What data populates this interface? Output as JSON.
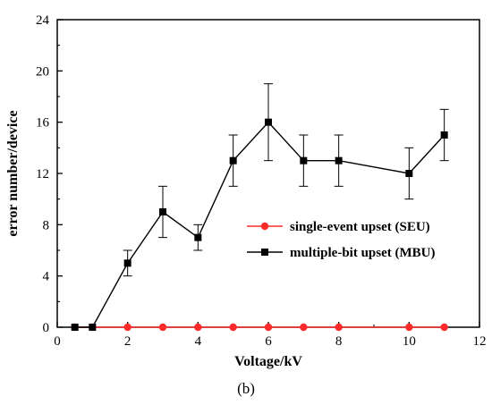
{
  "chart_data": {
    "type": "line",
    "xlabel": "Voltage/kV",
    "ylabel": "error number/device",
    "panel_label": "(b)",
    "xlim": [
      0,
      12
    ],
    "ylim": [
      0,
      24
    ],
    "xticks": [
      "0",
      "2",
      "4",
      "6",
      "8",
      "10",
      "12"
    ],
    "yticks": [
      "0",
      "4",
      "8",
      "12",
      "16",
      "20",
      "24"
    ],
    "legend_position": "center-right",
    "grid": false,
    "series": [
      {
        "name": "single-event upset (SEU)",
        "color": "#ff2a2a",
        "marker": "circle",
        "x": [
          0.5,
          1,
          2,
          3,
          4,
          5,
          6,
          7,
          8,
          10,
          11
        ],
        "y": [
          0,
          0,
          0,
          0,
          0,
          0,
          0,
          0,
          0,
          0,
          0
        ]
      },
      {
        "name": "multiple-bit upset (MBU)",
        "color": "#000000",
        "marker": "square",
        "x": [
          0.5,
          1,
          2,
          3,
          4,
          5,
          6,
          7,
          8,
          10,
          11
        ],
        "y": [
          0,
          0,
          5,
          9,
          7,
          13,
          16,
          13,
          13,
          12,
          15
        ],
        "error": [
          0,
          0,
          1,
          2,
          1,
          2,
          3,
          2,
          2,
          2,
          2
        ]
      }
    ]
  }
}
